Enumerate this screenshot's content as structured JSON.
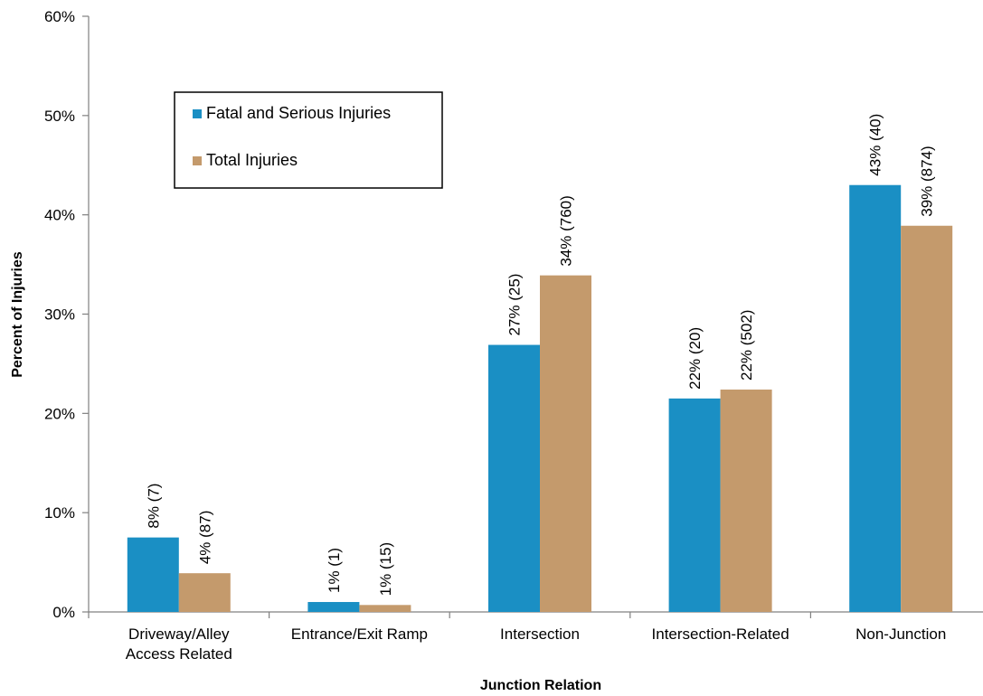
{
  "chart_data": {
    "type": "bar",
    "title": "",
    "xlabel": "Junction Relation",
    "ylabel": "Percent of Injuries",
    "ylim": [
      0,
      60
    ],
    "y_ticks": [
      "0%",
      "10%",
      "20%",
      "30%",
      "40%",
      "50%",
      "60%"
    ],
    "categories": [
      [
        "Driveway/Alley",
        "Access Related"
      ],
      [
        "Entrance/Exit Ramp"
      ],
      [
        "Intersection"
      ],
      [
        "Intersection-Related"
      ],
      [
        "Non-Junction"
      ]
    ],
    "series": [
      {
        "name": "Fatal and Serious Injuries",
        "color": "#1a8fc4",
        "values": [
          7.5,
          1.0,
          26.9,
          21.5,
          43.0
        ],
        "labels": [
          "8% (7)",
          "1% (1)",
          "27% (25)",
          "22% (20)",
          "43% (40)"
        ]
      },
      {
        "name": "Total Injuries",
        "color": "#c49a6c",
        "values": [
          3.9,
          0.7,
          33.9,
          22.4,
          38.9
        ],
        "labels": [
          "4% (87)",
          "1% (15)",
          "34% (760)",
          "22% (502)",
          "39% (874)"
        ]
      }
    ],
    "legend_position": "upper-left",
    "grid": false
  }
}
